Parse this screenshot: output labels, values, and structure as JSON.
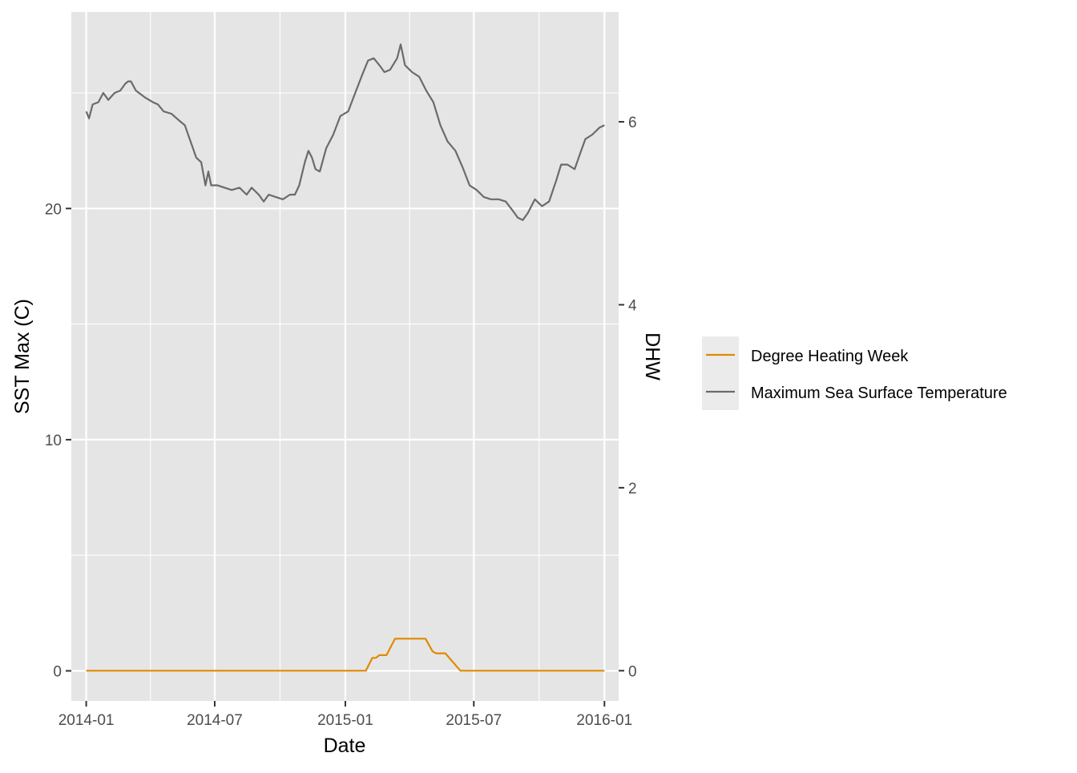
{
  "chart_data": {
    "type": "line",
    "xlabel": "Date",
    "ylabel": "SST Max (C)",
    "y2label": "DHW",
    "x_range": [
      "2013-12-11",
      "2016-01-21"
    ],
    "x_major_ticks": [
      "2014-01",
      "2014-07",
      "2015-01",
      "2015-07",
      "2016-01"
    ],
    "ylim": [
      -1.3,
      28.5
    ],
    "y_ticks": [
      0,
      10,
      20
    ],
    "y2lim": [
      -0.33,
      7.2
    ],
    "y2_ticks": [
      0,
      2,
      4,
      6
    ],
    "legend_position": "right",
    "colors": {
      "panel": "#e5e5e5",
      "grid": "#ffffff",
      "legend_key": "#ebebeb"
    },
    "series": [
      {
        "name": "Degree Heating Week",
        "axis": "right",
        "color": "#e08a00",
        "points": [
          [
            "2014-01-01",
            0
          ],
          [
            "2015-01-30",
            0
          ],
          [
            "2015-02-08",
            0.14
          ],
          [
            "2015-02-13",
            0.14
          ],
          [
            "2015-02-18",
            0.17
          ],
          [
            "2015-02-28",
            0.17
          ],
          [
            "2015-03-12",
            0.35
          ],
          [
            "2015-04-24",
            0.35
          ],
          [
            "2015-05-04",
            0.21
          ],
          [
            "2015-05-09",
            0.19
          ],
          [
            "2015-05-22",
            0.19
          ],
          [
            "2015-06-12",
            0
          ],
          [
            "2016-01-01",
            0
          ]
        ]
      },
      {
        "name": "Maximum Sea Surface Temperature",
        "axis": "left",
        "color": "#6b6b6b",
        "points": [
          [
            "2014-01-01",
            24.2
          ],
          [
            "2014-01-05",
            23.9
          ],
          [
            "2014-01-10",
            24.5
          ],
          [
            "2014-01-18",
            24.6
          ],
          [
            "2014-01-25",
            25.0
          ],
          [
            "2014-02-01",
            24.7
          ],
          [
            "2014-02-10",
            25.0
          ],
          [
            "2014-02-18",
            25.1
          ],
          [
            "2014-02-25",
            25.4
          ],
          [
            "2014-03-01",
            25.5
          ],
          [
            "2014-03-05",
            25.5
          ],
          [
            "2014-03-12",
            25.1
          ],
          [
            "2014-03-25",
            24.8
          ],
          [
            "2014-04-05",
            24.6
          ],
          [
            "2014-04-12",
            24.5
          ],
          [
            "2014-04-20",
            24.2
          ],
          [
            "2014-05-01",
            24.1
          ],
          [
            "2014-05-12",
            23.8
          ],
          [
            "2014-05-20",
            23.6
          ],
          [
            "2014-05-28",
            22.9
          ],
          [
            "2014-06-05",
            22.2
          ],
          [
            "2014-06-12",
            22.0
          ],
          [
            "2014-06-18",
            21.0
          ],
          [
            "2014-06-22",
            21.6
          ],
          [
            "2014-06-26",
            21.0
          ],
          [
            "2014-07-05",
            21.0
          ],
          [
            "2014-07-15",
            20.9
          ],
          [
            "2014-07-25",
            20.8
          ],
          [
            "2014-08-05",
            20.9
          ],
          [
            "2014-08-15",
            20.6
          ],
          [
            "2014-08-22",
            20.9
          ],
          [
            "2014-09-01",
            20.6
          ],
          [
            "2014-09-08",
            20.3
          ],
          [
            "2014-09-15",
            20.6
          ],
          [
            "2014-09-25",
            20.5
          ],
          [
            "2014-10-05",
            20.4
          ],
          [
            "2014-10-15",
            20.6
          ],
          [
            "2014-10-22",
            20.6
          ],
          [
            "2014-10-28",
            21.0
          ],
          [
            "2014-11-05",
            22.0
          ],
          [
            "2014-11-10",
            22.5
          ],
          [
            "2014-11-15",
            22.2
          ],
          [
            "2014-11-20",
            21.7
          ],
          [
            "2014-11-26",
            21.6
          ],
          [
            "2014-12-05",
            22.6
          ],
          [
            "2014-12-15",
            23.2
          ],
          [
            "2014-12-25",
            24.0
          ],
          [
            "2015-01-05",
            24.2
          ],
          [
            "2015-01-15",
            25.0
          ],
          [
            "2015-01-25",
            25.8
          ],
          [
            "2015-02-02",
            26.4
          ],
          [
            "2015-02-10",
            26.5
          ],
          [
            "2015-02-18",
            26.2
          ],
          [
            "2015-02-25",
            25.9
          ],
          [
            "2015-03-05",
            26.0
          ],
          [
            "2015-03-15",
            26.5
          ],
          [
            "2015-03-20",
            27.1
          ],
          [
            "2015-03-26",
            26.2
          ],
          [
            "2015-04-05",
            25.9
          ],
          [
            "2015-04-15",
            25.7
          ],
          [
            "2015-04-25",
            25.1
          ],
          [
            "2015-05-05",
            24.6
          ],
          [
            "2015-05-15",
            23.6
          ],
          [
            "2015-05-25",
            22.9
          ],
          [
            "2015-06-05",
            22.5
          ],
          [
            "2015-06-15",
            21.8
          ],
          [
            "2015-06-25",
            21.0
          ],
          [
            "2015-07-05",
            20.8
          ],
          [
            "2015-07-15",
            20.5
          ],
          [
            "2015-07-25",
            20.4
          ],
          [
            "2015-08-05",
            20.4
          ],
          [
            "2015-08-15",
            20.3
          ],
          [
            "2015-08-25",
            19.9
          ],
          [
            "2015-09-01",
            19.6
          ],
          [
            "2015-09-08",
            19.5
          ],
          [
            "2015-09-15",
            19.8
          ],
          [
            "2015-09-25",
            20.4
          ],
          [
            "2015-10-05",
            20.1
          ],
          [
            "2015-10-15",
            20.3
          ],
          [
            "2015-10-25",
            21.2
          ],
          [
            "2015-11-01",
            21.9
          ],
          [
            "2015-11-10",
            21.9
          ],
          [
            "2015-11-20",
            21.7
          ],
          [
            "2015-11-28",
            22.4
          ],
          [
            "2015-12-05",
            23.0
          ],
          [
            "2015-12-15",
            23.2
          ],
          [
            "2015-12-25",
            23.5
          ],
          [
            "2016-01-01",
            23.6
          ]
        ]
      }
    ]
  }
}
